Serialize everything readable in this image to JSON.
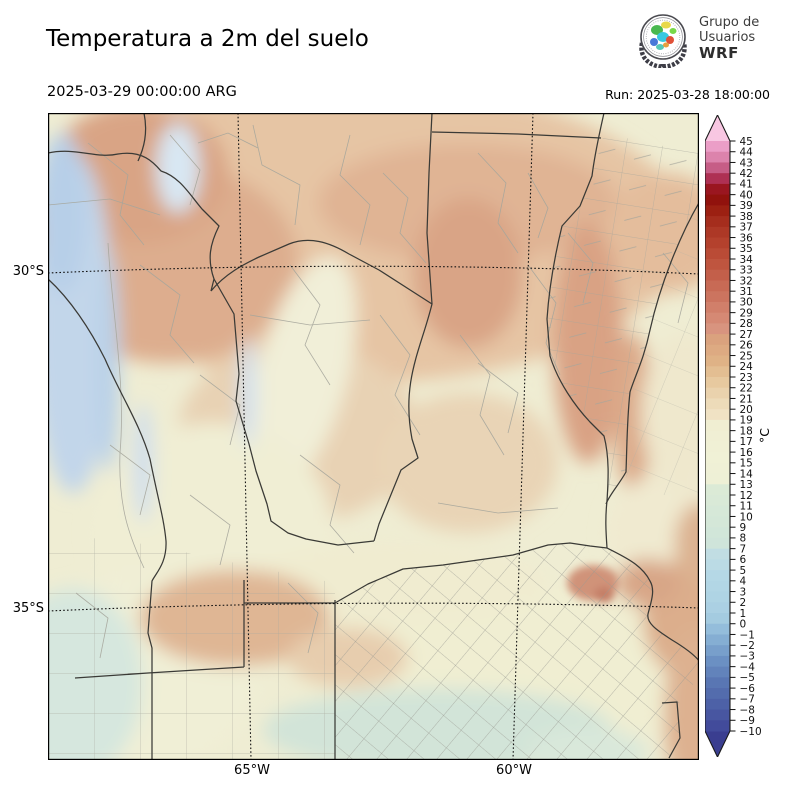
{
  "header": {
    "title": "Temperatura a 2m del suelo",
    "valid_time": "2025-03-29 00:00:00 ARG",
    "run_label": "Run: 2025-03-28 18:00:00"
  },
  "logo": {
    "line1": "Grupo de",
    "line2": "Usuarios",
    "line3": "WRF"
  },
  "map": {
    "lat_ticks": [
      "30°S",
      "35°S"
    ],
    "lon_ticks": [
      "65°W",
      "60°W"
    ]
  },
  "colorbar": {
    "unit_label": "°C",
    "max": 45,
    "min": -10,
    "tick_values": [
      45,
      44,
      43,
      42,
      41,
      40,
      39,
      38,
      37,
      36,
      35,
      34,
      33,
      32,
      31,
      30,
      29,
      28,
      27,
      26,
      25,
      24,
      23,
      22,
      21,
      20,
      19,
      18,
      17,
      16,
      15,
      14,
      13,
      12,
      11,
      10,
      9,
      8,
      7,
      6,
      5,
      4,
      3,
      2,
      1,
      0,
      -1,
      -2,
      -3,
      -4,
      -5,
      -6,
      -7,
      -8,
      -9,
      -10
    ],
    "over_color": "#f8c7e2",
    "under_color": "#3a3e90",
    "anchors": [
      [
        -10.5,
        "#3c4094"
      ],
      [
        -9.5,
        "#424b9b"
      ],
      [
        -7.5,
        "#4d61a7"
      ],
      [
        -5.5,
        "#5976b3"
      ],
      [
        -3.5,
        "#6b90c3"
      ],
      [
        -1.5,
        "#85aed3"
      ],
      [
        -0.5,
        "#94bddb"
      ],
      [
        0.5,
        "#a4cbe0"
      ],
      [
        2,
        "#aed3e4"
      ],
      [
        4.5,
        "#b5d8e6"
      ],
      [
        6.5,
        "#c1dde3"
      ],
      [
        7.5,
        "#cfe4da"
      ],
      [
        10,
        "#d5e8d8"
      ],
      [
        12.5,
        "#dbead6"
      ],
      [
        13.5,
        "#eef0d6"
      ],
      [
        16,
        "#f0f1d6"
      ],
      [
        18.5,
        "#f0eed2"
      ],
      [
        19.5,
        "#f0e2c4"
      ],
      [
        21,
        "#ecd7b4"
      ],
      [
        23,
        "#e5c498"
      ],
      [
        24.5,
        "#dfb286"
      ],
      [
        26.5,
        "#daa27e"
      ],
      [
        27.5,
        "#d8947f"
      ],
      [
        29,
        "#d3846f"
      ],
      [
        31,
        "#ca6f5a"
      ],
      [
        33,
        "#c15a44"
      ],
      [
        35,
        "#b74631"
      ],
      [
        37,
        "#aa3322"
      ],
      [
        38.5,
        "#9c2012"
      ],
      [
        39.5,
        "#91120d"
      ],
      [
        40.5,
        "#9a1620"
      ],
      [
        41.5,
        "#ae3053"
      ],
      [
        42.5,
        "#c65d86"
      ],
      [
        43.5,
        "#dc83ac"
      ],
      [
        44.5,
        "#eb9ec7"
      ],
      [
        45.5,
        "#f2abd0"
      ]
    ]
  }
}
